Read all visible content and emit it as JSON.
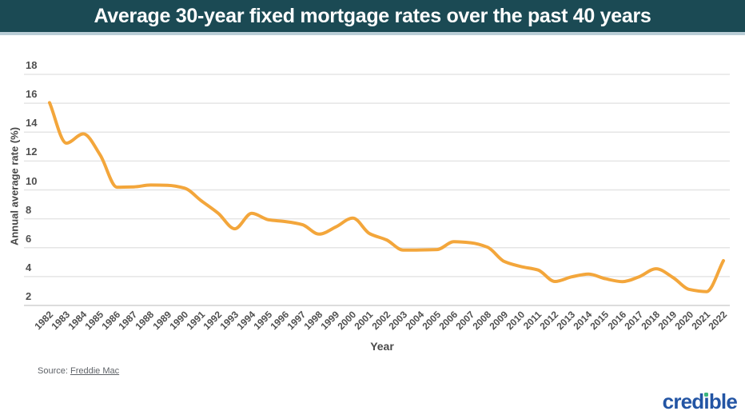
{
  "header": {
    "title": "Average 30-year fixed mortgage rates over the past 40 years",
    "bg_color": "#1b4a54",
    "border_color": "#b9cdd6",
    "text_color": "#ffffff"
  },
  "chart_data": {
    "type": "line",
    "title": "Average 30-year fixed mortgage rates over the past 40 years",
    "xlabel": "Year",
    "ylabel": "Annual average rate (%)",
    "x": [
      1982,
      1983,
      1984,
      1985,
      1986,
      1987,
      1988,
      1989,
      1990,
      1991,
      1992,
      1993,
      1994,
      1995,
      1996,
      1997,
      1998,
      1999,
      2000,
      2001,
      2002,
      2003,
      2004,
      2005,
      2006,
      2007,
      2008,
      2009,
      2010,
      2011,
      2012,
      2013,
      2014,
      2015,
      2016,
      2017,
      2018,
      2019,
      2020,
      2021,
      2022
    ],
    "values": [
      16.04,
      13.24,
      13.88,
      12.43,
      10.19,
      10.21,
      10.34,
      10.32,
      10.13,
      9.25,
      8.39,
      7.31,
      8.38,
      7.93,
      7.81,
      7.6,
      6.94,
      7.44,
      8.05,
      6.97,
      6.54,
      5.83,
      5.84,
      5.87,
      6.41,
      6.34,
      6.03,
      5.04,
      4.69,
      4.45,
      3.66,
      3.98,
      4.17,
      3.85,
      3.65,
      3.99,
      4.54,
      3.94,
      3.1,
      2.96,
      5.1
    ],
    "series_name": "Average 30-year fixed mortgage rate (%)",
    "ylim": [
      2,
      18
    ],
    "y_ticks": [
      18,
      16,
      14,
      12,
      10,
      8,
      6,
      4,
      2
    ],
    "grid": "horizontal",
    "legend": "none",
    "smooth": true,
    "line_color": "#f3a63b",
    "grid_color": "#e5e5e5",
    "bottom_grid_color": "#dcdcdc",
    "tick_color": "#4f4f4f"
  },
  "footer": {
    "source_prefix": "Source:",
    "source_link": "Freddie Mac"
  },
  "branding": {
    "logo_text": "credible",
    "logo_color": "#2355a4",
    "logo_dot_color": "#3cb57d"
  }
}
